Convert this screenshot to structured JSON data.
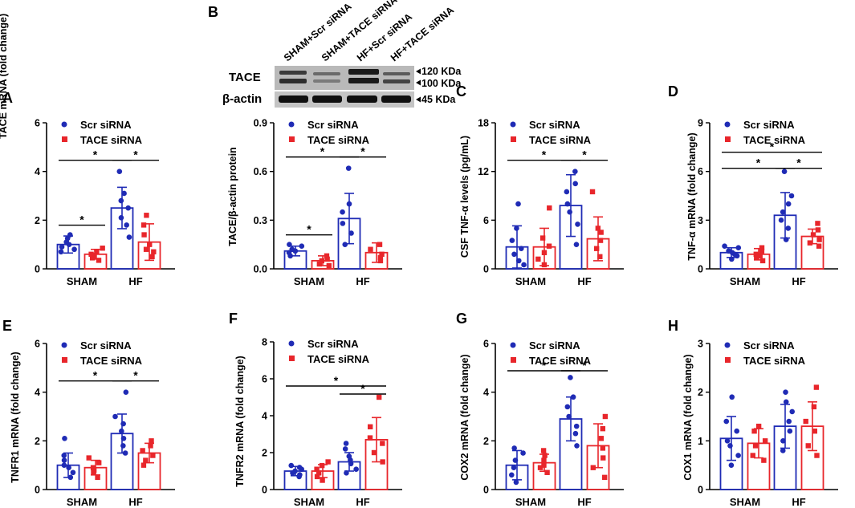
{
  "colors": {
    "scr": "#1f2bb5",
    "tace": "#e8262b",
    "axis": "#000000"
  },
  "legend": {
    "scr": "Scr siRNA",
    "tace": "TACE siRNA"
  },
  "groups": [
    "SHAM",
    "HF"
  ],
  "blot": {
    "panel": "B",
    "lanes": [
      "SHAM+Scr siRNA",
      "SHAM+TACE siRNA",
      "HF+Scr siRNA",
      "HF+TACE siRNA"
    ],
    "rows": [
      "TACE",
      "β-actin"
    ],
    "markers": [
      "120 KDa",
      "100 KDa",
      "45 KDa"
    ]
  },
  "chart_data": [
    {
      "panel": "A",
      "type": "bar",
      "ylabel": "TACE mRNA (fold change)",
      "ylim": [
        0,
        6
      ],
      "yticks": [
        "0",
        "2",
        "4",
        "6"
      ],
      "categories": [
        "SHAM",
        "HF"
      ],
      "series": [
        {
          "name": "Scr siRNA",
          "values": [
            1.0,
            2.5
          ],
          "sd": [
            0.35,
            0.85
          ],
          "points": [
            [
              0.7,
              0.8,
              0.9,
              1.0,
              1.1,
              1.25,
              1.4
            ],
            [
              1.3,
              1.8,
              2.1,
              2.5,
              2.8,
              3.1,
              4.0
            ]
          ]
        },
        {
          "name": "TACE siRNA",
          "values": [
            0.6,
            1.1
          ],
          "sd": [
            0.2,
            0.75
          ],
          "points": [
            [
              0.35,
              0.45,
              0.55,
              0.6,
              0.7,
              0.85
            ],
            [
              0.5,
              0.7,
              0.8,
              1.0,
              1.4,
              1.8,
              2.2
            ]
          ]
        }
      ],
      "significance": [
        {
          "pair": "SHAM-Scr vs SHAM-TACE",
          "label": "*"
        },
        {
          "pair": "SHAM-Scr vs HF-Scr",
          "label": "*"
        },
        {
          "pair": "HF-Scr vs HF-TACE",
          "label": "*"
        }
      ]
    },
    {
      "panel": "B",
      "type": "bar",
      "ylabel": "TACE/β-actin protein",
      "ylim": [
        0,
        0.9
      ],
      "yticks": [
        "0.0",
        "0.3",
        "0.6",
        "0.9"
      ],
      "categories": [
        "SHAM",
        "HF"
      ],
      "series": [
        {
          "name": "Scr siRNA",
          "values": [
            0.11,
            0.31
          ],
          "sd": [
            0.03,
            0.155
          ],
          "points": [
            [
              0.08,
              0.1,
              0.11,
              0.12,
              0.14,
              0.15
            ],
            [
              0.15,
              0.22,
              0.28,
              0.35,
              0.4,
              0.62
            ]
          ]
        },
        {
          "name": "TACE siRNA",
          "values": [
            0.05,
            0.1
          ],
          "sd": [
            0.03,
            0.06
          ],
          "points": [
            [
              0.02,
              0.03,
              0.05,
              0.06,
              0.08
            ],
            [
              0.05,
              0.07,
              0.09,
              0.12,
              0.15
            ]
          ]
        }
      ],
      "significance": [
        {
          "pair": "SHAM-Scr vs SHAM-TACE",
          "label": "*"
        },
        {
          "pair": "SHAM-Scr vs HF-Scr",
          "label": "*"
        },
        {
          "pair": "HF-Scr vs HF-TACE",
          "label": "*"
        }
      ]
    },
    {
      "panel": "C",
      "type": "bar",
      "ylabel": "CSF TNF-α levels (pg/mL)",
      "ylim": [
        0,
        18
      ],
      "yticks": [
        "0",
        "6",
        "12",
        "18"
      ],
      "categories": [
        "SHAM",
        "HF"
      ],
      "series": [
        {
          "name": "Scr siRNA",
          "values": [
            2.7,
            7.8
          ],
          "sd": [
            2.6,
            3.8
          ],
          "points": [
            [
              0.5,
              1.0,
              1.8,
              2.5,
              3.5,
              5.0,
              8.0
            ],
            [
              3.0,
              5.5,
              7.0,
              8.0,
              9.5,
              10.5,
              12.0
            ]
          ]
        },
        {
          "name": "TACE siRNA",
          "values": [
            2.7,
            3.7
          ],
          "sd": [
            2.3,
            2.7
          ],
          "points": [
            [
              0.5,
              1.2,
              2.0,
              2.8,
              3.8,
              7.5
            ],
            [
              1.5,
              2.5,
              3.5,
              4.5,
              5.0,
              9.5
            ]
          ]
        }
      ],
      "significance": [
        {
          "pair": "SHAM-Scr vs HF-Scr",
          "label": "*"
        },
        {
          "pair": "HF-Scr vs HF-TACE",
          "label": "*"
        }
      ]
    },
    {
      "panel": "D",
      "type": "bar",
      "ylabel": "TNF-α mRNA (fold change)",
      "ylim": [
        0,
        9
      ],
      "yticks": [
        "0",
        "3",
        "6",
        "9"
      ],
      "categories": [
        "SHAM",
        "HF"
      ],
      "series": [
        {
          "name": "Scr siRNA",
          "values": [
            1.0,
            3.3
          ],
          "sd": [
            0.3,
            1.4
          ],
          "points": [
            [
              0.6,
              0.8,
              0.9,
              1.0,
              1.1,
              1.3,
              1.4
            ],
            [
              1.8,
              2.5,
              3.0,
              3.5,
              4.0,
              4.5,
              6.0
            ]
          ]
        },
        {
          "name": "TACE siRNA",
          "values": [
            0.9,
            2.0
          ],
          "sd": [
            0.35,
            0.45
          ],
          "points": [
            [
              0.5,
              0.7,
              0.8,
              0.9,
              1.1,
              1.3
            ],
            [
              1.4,
              1.6,
              1.8,
              2.1,
              2.4,
              2.8
            ]
          ]
        }
      ],
      "significance": [
        {
          "pair": "SHAM-Scr vs HF-Scr",
          "label": "*"
        },
        {
          "pair": "HF-Scr vs HF-TACE",
          "label": "*"
        },
        {
          "pair": "SHAM-Scr vs HF-TACE",
          "label": "*"
        }
      ]
    },
    {
      "panel": "E",
      "type": "bar",
      "ylabel": "TNFR1 mRNA (fold change)",
      "ylim": [
        0,
        6
      ],
      "yticks": [
        "0",
        "2",
        "4",
        "6"
      ],
      "categories": [
        "SHAM",
        "HF"
      ],
      "series": [
        {
          "name": "Scr siRNA",
          "values": [
            1.0,
            2.3
          ],
          "sd": [
            0.5,
            0.8
          ],
          "points": [
            [
              0.5,
              0.7,
              0.9,
              1.0,
              1.2,
              1.4,
              2.1
            ],
            [
              1.5,
              1.8,
              2.1,
              2.4,
              2.7,
              3.0,
              4.0
            ]
          ]
        },
        {
          "name": "TACE siRNA",
          "values": [
            0.9,
            1.5
          ],
          "sd": [
            0.3,
            0.4
          ],
          "points": [
            [
              0.5,
              0.7,
              0.8,
              0.9,
              1.1,
              1.3
            ],
            [
              1.0,
              1.2,
              1.4,
              1.6,
              1.8,
              2.0
            ]
          ]
        }
      ],
      "significance": [
        {
          "pair": "SHAM-Scr vs HF-Scr",
          "label": "*"
        },
        {
          "pair": "HF-Scr vs HF-TACE",
          "label": "*"
        }
      ]
    },
    {
      "panel": "F",
      "type": "bar",
      "ylabel": "TNFR2 mRNA (fold change)",
      "ylim": [
        0,
        8
      ],
      "yticks": [
        "0",
        "2",
        "4",
        "6",
        "8"
      ],
      "categories": [
        "SHAM",
        "HF"
      ],
      "series": [
        {
          "name": "Scr siRNA",
          "values": [
            1.0,
            1.5
          ],
          "sd": [
            0.25,
            0.5
          ],
          "points": [
            [
              0.7,
              0.8,
              0.9,
              1.0,
              1.1,
              1.2,
              1.3
            ],
            [
              0.9,
              1.1,
              1.4,
              1.6,
              1.8,
              2.2,
              2.5
            ]
          ]
        },
        {
          "name": "TACE siRNA",
          "values": [
            1.0,
            2.7
          ],
          "sd": [
            0.35,
            1.2
          ],
          "points": [
            [
              0.5,
              0.7,
              0.9,
              1.1,
              1.3,
              1.5
            ],
            [
              1.5,
              2.0,
              2.5,
              2.8,
              3.4,
              5.0
            ]
          ]
        }
      ],
      "significance": [
        {
          "pair": "SHAM-Scr vs HF-TACE",
          "label": "*"
        },
        {
          "pair": "HF-Scr vs HF-TACE",
          "label": "*"
        }
      ]
    },
    {
      "panel": "G",
      "type": "bar",
      "ylabel": "COX2 mRNA (fold change)",
      "ylim": [
        0,
        6
      ],
      "yticks": [
        "0",
        "2",
        "4",
        "6"
      ],
      "categories": [
        "SHAM",
        "HF"
      ],
      "series": [
        {
          "name": "Scr siRNA",
          "values": [
            1.0,
            2.9
          ],
          "sd": [
            0.6,
            0.9
          ],
          "points": [
            [
              0.3,
              0.6,
              0.9,
              1.2,
              1.5,
              1.7
            ],
            [
              1.8,
              2.3,
              2.6,
              3.0,
              3.4,
              3.8,
              4.6
            ]
          ]
        },
        {
          "name": "TACE siRNA",
          "values": [
            1.1,
            1.8
          ],
          "sd": [
            0.35,
            0.9
          ],
          "points": [
            [
              0.7,
              0.9,
              1.0,
              1.2,
              1.4,
              1.6
            ],
            [
              0.5,
              0.9,
              1.3,
              1.7,
              2.1,
              2.5,
              3.0
            ]
          ]
        }
      ],
      "significance": [
        {
          "pair": "SHAM-Scr vs HF-Scr",
          "label": "*"
        },
        {
          "pair": "HF-Scr vs HF-TACE",
          "label": "*"
        }
      ]
    },
    {
      "panel": "H",
      "type": "bar",
      "ylabel": "COX1 mRNA (fold change)",
      "ylim": [
        0,
        3
      ],
      "yticks": [
        "0",
        "1",
        "2",
        "3"
      ],
      "categories": [
        "SHAM",
        "HF"
      ],
      "series": [
        {
          "name": "Scr siRNA",
          "values": [
            1.05,
            1.3
          ],
          "sd": [
            0.45,
            0.45
          ],
          "points": [
            [
              0.5,
              0.7,
              0.9,
              1.0,
              1.2,
              1.4,
              1.9
            ],
            [
              0.8,
              1.0,
              1.2,
              1.4,
              1.6,
              1.8,
              2.0
            ]
          ]
        },
        {
          "name": "TACE siRNA",
          "values": [
            0.95,
            1.3
          ],
          "sd": [
            0.3,
            0.5
          ],
          "points": [
            [
              0.6,
              0.7,
              0.9,
              1.0,
              1.2,
              1.3
            ],
            [
              0.7,
              0.9,
              1.2,
              1.4,
              1.7,
              2.1
            ]
          ]
        }
      ],
      "significance": []
    }
  ]
}
